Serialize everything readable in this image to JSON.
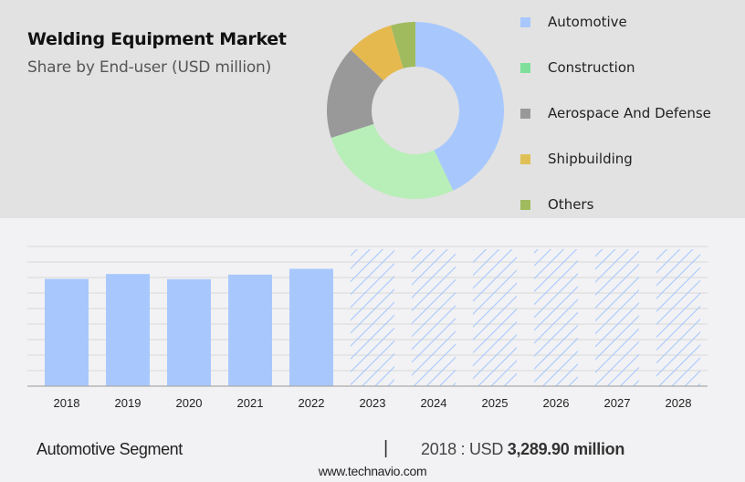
{
  "header": {
    "title": "Welding Equipment Market",
    "subtitle": "Share by End-user (USD million)"
  },
  "colors": {
    "top_panel_bg": "#e2e2e2",
    "bottom_panel_bg": "#f2f2f4",
    "bar_actual": "#a8c8fd",
    "bar_forecast_hatch": "#a8c8fd",
    "gridline": "#d8d8d8",
    "axis": "#aaaaaa"
  },
  "legend": {
    "items": [
      {
        "label": "Automotive",
        "color": "#a8c8fd"
      },
      {
        "label": "Construction",
        "color": "#7ee09a"
      },
      {
        "label": "Aerospace And Defense",
        "color": "#999999"
      },
      {
        "label": "Shipbuilding",
        "color": "#e0c055"
      },
      {
        "label": "Others",
        "color": "#9fbb5e"
      }
    ]
  },
  "footer": {
    "segment_label": "Automotive Segment",
    "separator": "|",
    "value_prefix": "2018 : USD",
    "value_bold": "3,289.90 million",
    "source_url": "www.technavio.com"
  },
  "chart_data": [
    {
      "type": "pie",
      "subtype": "donut",
      "title": "Welding Equipment Market",
      "subtitle": "Share by End-user (USD million)",
      "categories": [
        "Automotive",
        "Construction",
        "Aerospace And Defense",
        "Shipbuilding",
        "Others"
      ],
      "values": [
        43,
        27,
        17,
        8.5,
        4.5
      ],
      "value_unit": "approx. % share (estimated from slice angles)",
      "colors": [
        "#a8c8fd",
        "#b8eeb8",
        "#999999",
        "#e6b94f",
        "#9fbb5e"
      ],
      "legend_position": "right"
    },
    {
      "type": "bar",
      "title": "Automotive Segment",
      "categories": [
        "2018",
        "2019",
        "2020",
        "2021",
        "2022",
        "2023",
        "2024",
        "2025",
        "2026",
        "2027",
        "2028"
      ],
      "series": [
        {
          "name": "Automotive (actual)",
          "values": [
            3289.9,
            3440,
            3280,
            3420,
            3600,
            null,
            null,
            null,
            null,
            null,
            null
          ]
        },
        {
          "name": "Automotive (forecast, hatched)",
          "values": [
            null,
            null,
            null,
            null,
            null,
            4200,
            4200,
            4200,
            4200,
            4200,
            4200
          ]
        }
      ],
      "annotations": [
        "2018 : USD 3,289.90 million"
      ],
      "xlabel": "",
      "ylabel": "",
      "y_ticks_visible": false,
      "grid": true,
      "gridline_count": 9,
      "note": "Forecast bars 2023-2028 drawn as full-height hatched placeholders; y-axis unlabeled, values estimated relative to 2018 = 3,289.90"
    }
  ]
}
